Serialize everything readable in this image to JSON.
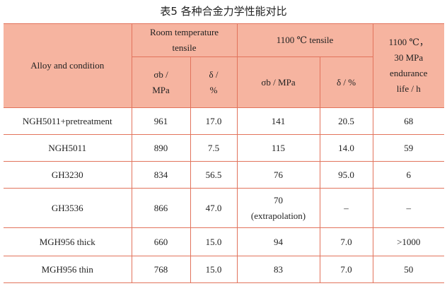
{
  "caption": "表5    各种合金力学性能对比",
  "table": {
    "header": {
      "alloy": "Alloy and condition",
      "room": "Room temperature\ntensile",
      "hot": "1100 ℃ tensile",
      "life": "1100 ℃，\n30 MPa\nendurance\nlife / h",
      "sub": [
        "σb /\nMPa",
        "δ /\n%",
        "σb / MPa",
        "δ / %"
      ]
    },
    "rows": [
      [
        "NGH5011+pretreatment",
        "961",
        "17.0",
        "141",
        "20.5",
        "68"
      ],
      [
        "NGH5011",
        "890",
        "7.5",
        "115",
        "14.0",
        "59"
      ],
      [
        "GH3230",
        "834",
        "56.5",
        "76",
        "95.0",
        "6"
      ],
      [
        "GH3536",
        "866",
        "47.0",
        "70\n(extrapolation)",
        "–",
        "–"
      ],
      [
        "MGH956 thick",
        "660",
        "15.0",
        "94",
        "7.0",
        ">1000"
      ],
      [
        "MGH956 thin",
        "768",
        "15.0",
        "83",
        "7.0",
        "50"
      ]
    ]
  }
}
